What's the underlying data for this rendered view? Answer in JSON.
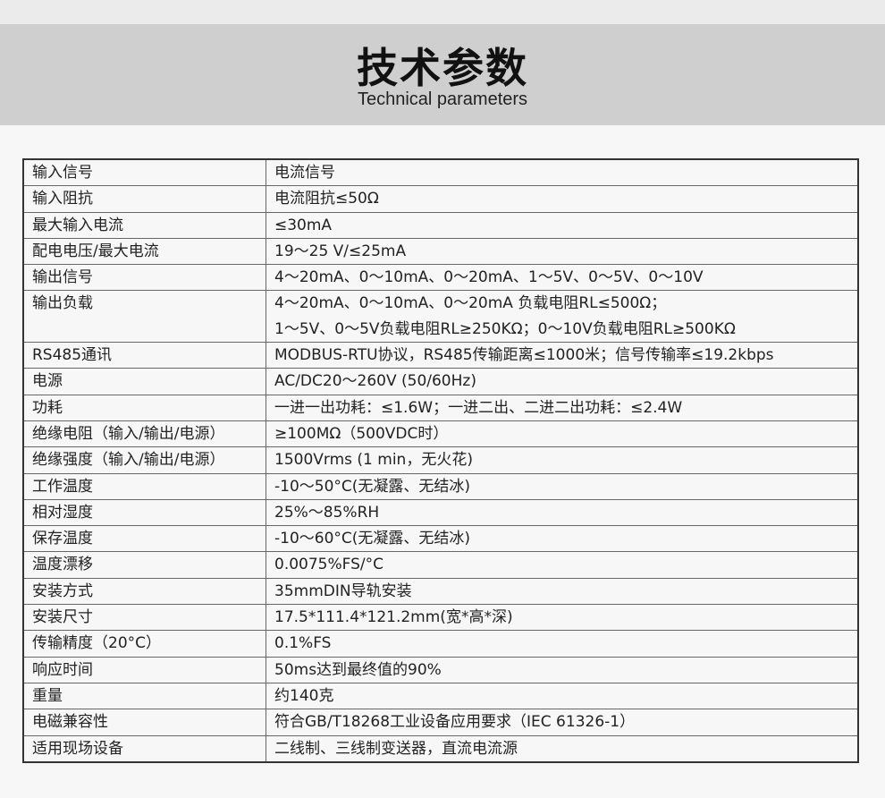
{
  "header": {
    "title": "技术参数",
    "subtitle": "Technical parameters"
  },
  "specs": [
    {
      "label": "输入信号",
      "value": [
        "电流信号"
      ]
    },
    {
      "label": "输入阻抗",
      "value": [
        "电流阻抗≤50Ω"
      ]
    },
    {
      "label": "最大输入电流",
      "value": [
        "≤30mA"
      ]
    },
    {
      "label": "配电电压/最大电流",
      "value": [
        "19～25 V/≤25mA"
      ]
    },
    {
      "label": "输出信号",
      "value": [
        "4～20mA、0～10mA、0～20mA、1～5V、0～5V、0～10V"
      ]
    },
    {
      "label": "输出负载",
      "value": [
        "4～20mA、0～10mA、0～20mA 负载电阻RL≤500Ω；",
        "1～5V、0～5V负载电阻RL≥250KΩ；0～10V负载电阻RL≥500KΩ"
      ]
    },
    {
      "label": "RS485通讯",
      "value": [
        "MODBUS-RTU协议，RS485传输距离≤1000米；信号传输率≤19.2kbps"
      ]
    },
    {
      "label": "电源",
      "value": [
        "AC/DC20～260V (50/60Hz)"
      ]
    },
    {
      "label": "功耗",
      "value": [
        "一进一出功耗：≤1.6W；一进二出、二进二出功耗：≤2.4W"
      ]
    },
    {
      "label": "绝缘电阻（输入/输出/电源）",
      "value": [
        "≥100MΩ（500VDC时）"
      ]
    },
    {
      "label": "绝缘强度（输入/输出/电源）",
      "value": [
        "1500Vrms (1 min，无火花)"
      ]
    },
    {
      "label": "工作温度",
      "value": [
        "-10～50°C(无凝露、无结冰)"
      ]
    },
    {
      "label": "相对湿度",
      "value": [
        "25%～85%RH"
      ]
    },
    {
      "label": "保存温度",
      "value": [
        "-10～60°C(无凝露、无结冰)"
      ]
    },
    {
      "label": "温度漂移",
      "value": [
        "0.0075%FS/°C"
      ]
    },
    {
      "label": "安装方式",
      "value": [
        "35mmDIN导轨安装"
      ]
    },
    {
      "label": "安装尺寸",
      "value": [
        "17.5*111.4*121.2mm(宽*高*深)"
      ]
    },
    {
      "label": "传输精度（20°C）",
      "value": [
        "0.1%FS"
      ]
    },
    {
      "label": "响应时间",
      "value": [
        "50ms达到最终值的90%"
      ]
    },
    {
      "label": "重量",
      "value": [
        "约140克"
      ]
    },
    {
      "label": "电磁兼容性",
      "value": [
        "符合GB/T18268工业设备应用要求（IEC 61326-1）"
      ]
    },
    {
      "label": "适用现场设备",
      "value": [
        "二线制、三线制变送器，直流电流源"
      ]
    }
  ]
}
